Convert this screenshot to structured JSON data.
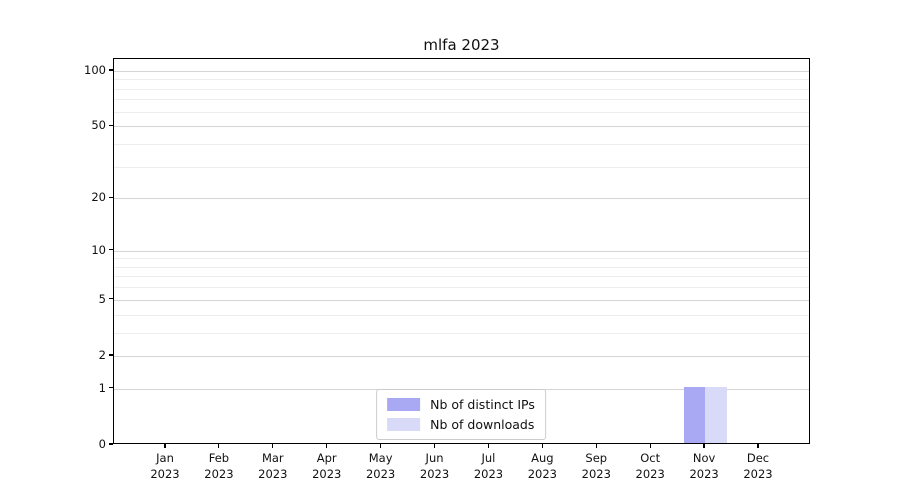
{
  "chart_data": {
    "type": "bar",
    "title": "mlfa 2023",
    "categories": [
      "Jan",
      "Feb",
      "Mar",
      "Apr",
      "May",
      "Jun",
      "Jul",
      "Aug",
      "Sep",
      "Oct",
      "Nov",
      "Dec"
    ],
    "year_label": "2023",
    "series": [
      {
        "name": "Nb of distinct IPs",
        "color": "#a9a9f3",
        "values": [
          0,
          0,
          0,
          0,
          0,
          0,
          0,
          0,
          0,
          0,
          1,
          0
        ]
      },
      {
        "name": "Nb of downloads",
        "color": "#d9d9f8",
        "values": [
          0,
          0,
          0,
          0,
          0,
          0,
          0,
          0,
          0,
          0,
          1,
          0
        ]
      }
    ],
    "yscale": "log1p",
    "yticks": [
      0,
      1,
      2,
      5,
      10,
      20,
      50,
      100
    ],
    "yticks_minor": [
      3,
      4,
      6,
      7,
      8,
      9,
      30,
      40,
      60,
      70,
      80,
      90
    ],
    "ylim": [
      0,
      116
    ],
    "grid": true,
    "legend_position": "lower center",
    "bar_group": "paired, centered on month tick"
  }
}
